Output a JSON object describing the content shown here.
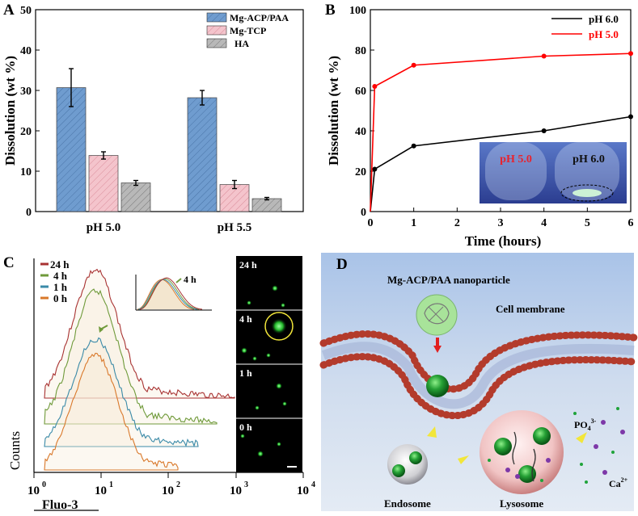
{
  "panels": {
    "A": {
      "label": "A",
      "chart_data": {
        "type": "bar",
        "categories": [
          "pH 5.0",
          "pH 5.5"
        ],
        "series": [
          {
            "name": "Mg-ACP/PAA",
            "values": [
              30.7,
              28.2
            ],
            "errors": [
              4.7,
              1.8
            ],
            "color": "#6f9ccf"
          },
          {
            "name": "Mg-TCP",
            "values": [
              13.9,
              6.7
            ],
            "errors": [
              0.9,
              1.0
            ],
            "color": "#f0a8b4"
          },
          {
            "name": "HA",
            "values": [
              7.1,
              3.2
            ],
            "errors": [
              0.6,
              0.3
            ],
            "color": "#a0a0a0"
          }
        ],
        "ylabel": "Dissolution (wt %)",
        "ylim": [
          0,
          50
        ],
        "yticks": [
          "0",
          "10",
          "20",
          "30",
          "40",
          "50"
        ],
        "legend": "top-right"
      }
    },
    "B": {
      "label": "B",
      "chart_data": {
        "type": "line",
        "series": [
          {
            "name": "pH 6.0",
            "color": "#000000",
            "x": [
              0,
              0.1,
              1,
              4,
              6
            ],
            "y": [
              0,
              21,
              32.5,
              40,
              47
            ]
          },
          {
            "name": "pH 5.0",
            "color": "#ff0000",
            "x": [
              0,
              0.1,
              1,
              4,
              6
            ],
            "y": [
              0,
              62,
              72.5,
              77,
              78.3
            ]
          }
        ],
        "xlabel": "Time (hours)",
        "ylabel": "Dissolution (wt %)",
        "xlim": [
          0,
          6
        ],
        "ylim": [
          0,
          100
        ],
        "xticks": [
          "0",
          "1",
          "2",
          "3",
          "4",
          "5",
          "6"
        ],
        "yticks": [
          "0",
          "20",
          "40",
          "60",
          "80",
          "100"
        ],
        "legend": "top-right",
        "inset_labels": [
          "pH 5.0",
          "pH 6.0"
        ]
      }
    },
    "C": {
      "label": "C",
      "chart_data": {
        "type": "line",
        "series": [
          {
            "name": "24 h",
            "color": "#a83232"
          },
          {
            "name": "4 h",
            "color": "#6f9a3a"
          },
          {
            "name": "1 h",
            "color": "#3a8aa8"
          },
          {
            "name": "0 h",
            "color": "#d9782a"
          }
        ],
        "xlabel": "Fluo-3",
        "ylabel": "Counts",
        "xtick_bases": [
          "10",
          "10",
          "10",
          "10",
          "10"
        ],
        "xtick_exps": [
          "0",
          "1",
          "2",
          "3",
          "4"
        ],
        "inset_annotation": "4 h",
        "micrograph_labels": [
          "24 h",
          "4 h",
          "1 h",
          "0 h"
        ]
      }
    },
    "D": {
      "label": "D",
      "texts": {
        "nanoparticle": "Mg-ACP/PAA nanoparticle",
        "membrane": "Cell membrane",
        "endosome": "Endosome",
        "lysosome": "Lysosome",
        "phosphate_base": "PO",
        "phosphate_sub": "4",
        "phosphate_sup": "3-",
        "calcium_base": "Ca",
        "calcium_sup": "2+"
      }
    }
  }
}
